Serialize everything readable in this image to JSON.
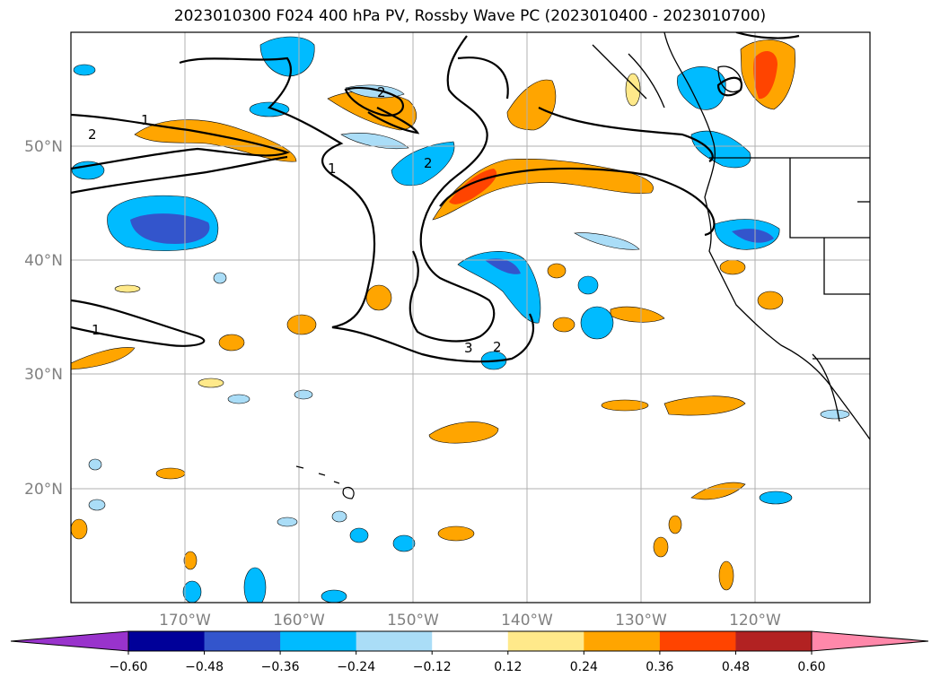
{
  "title": "2023010300 F024 400 hPa PV, Rossby Wave PC (2023010400 - 2023010700)",
  "map": {
    "lon_range": [
      -180,
      -110
    ],
    "lat_range": [
      10,
      60
    ],
    "grid": true,
    "lat_ticks": [
      "20°N",
      "30°N",
      "40°N",
      "50°N"
    ],
    "lon_ticks": [
      "170°W",
      "160°W",
      "150°W",
      "140°W",
      "130°W",
      "120°W"
    ],
    "contour_labels": [
      "1",
      "2",
      "1",
      "2",
      "2",
      "3",
      "2",
      "1"
    ]
  },
  "colorbar": {
    "ticks": [
      "−0.60",
      "−0.48",
      "−0.36",
      "−0.24",
      "−0.12",
      "0.12",
      "0.24",
      "0.36",
      "0.48",
      "0.60"
    ],
    "colors": [
      "#9933cc",
      "#000099",
      "#3355cc",
      "#00bbff",
      "#aaddf7",
      "#ffffff",
      "#ffe98a",
      "#ffa500",
      "#ff4400",
      "#b22222",
      "#ff88aa"
    ],
    "extend": "both"
  }
}
